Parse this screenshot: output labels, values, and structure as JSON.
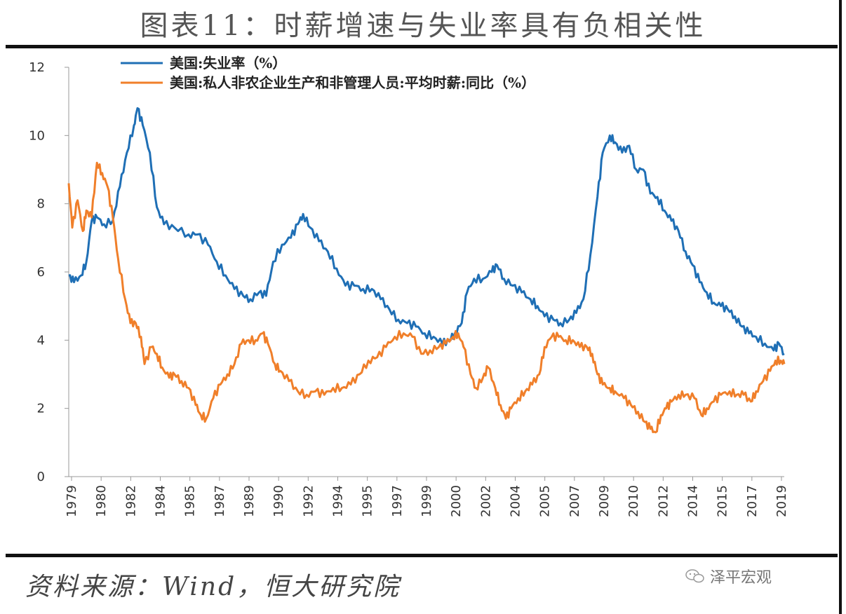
{
  "title": "图表11：时薪增速与失业率具有负相关性",
  "source": "资料来源：Wind，恒大研究院",
  "watermark": "泽平宏观",
  "watermark_icon": "wechat-icon",
  "colors": {
    "unemployment": "#1f6fb5",
    "wage": "#f07f2a",
    "axis": "#999999",
    "rule": "#111111"
  },
  "chart_data": {
    "type": "line",
    "title": "图表11：时薪增速与失业率具有负相关性",
    "xlabel": "",
    "ylabel": "",
    "xlim": [
      1979.0,
      2019.6
    ],
    "ylim": [
      0,
      12
    ],
    "yticks": [
      "0",
      "2",
      "4",
      "6",
      "8",
      "10",
      "12"
    ],
    "xticks": [
      "1979",
      "1980",
      "1982",
      "1984",
      "1985",
      "1987",
      "1989",
      "1990",
      "1992",
      "1994",
      "1995",
      "1997",
      "1999",
      "2000",
      "2002",
      "2004",
      "2005",
      "2007",
      "2009",
      "2010",
      "2012",
      "2014",
      "2015",
      "2017",
      "2019"
    ],
    "grid": false,
    "legend_position": "top",
    "series": [
      {
        "name": "美国:失业率（%）",
        "color": "#1f6fb5",
        "points": [
          [
            1979.0,
            5.9
          ],
          [
            1979.3,
            5.7
          ],
          [
            1979.7,
            5.9
          ],
          [
            1980.0,
            6.3
          ],
          [
            1980.3,
            7.5
          ],
          [
            1980.6,
            7.6
          ],
          [
            1981.0,
            7.4
          ],
          [
            1981.5,
            7.5
          ],
          [
            1981.9,
            8.5
          ],
          [
            1982.3,
            9.5
          ],
          [
            1982.7,
            10.3
          ],
          [
            1982.9,
            10.8
          ],
          [
            1983.2,
            10.3
          ],
          [
            1983.6,
            9.5
          ],
          [
            1984.0,
            7.9
          ],
          [
            1984.4,
            7.4
          ],
          [
            1985.0,
            7.3
          ],
          [
            1985.8,
            7.1
          ],
          [
            1986.3,
            7.1
          ],
          [
            1986.9,
            6.8
          ],
          [
            1987.4,
            6.3
          ],
          [
            1987.9,
            5.9
          ],
          [
            1988.4,
            5.5
          ],
          [
            1988.9,
            5.3
          ],
          [
            1989.3,
            5.2
          ],
          [
            1989.8,
            5.4
          ],
          [
            1990.2,
            5.3
          ],
          [
            1990.6,
            6.3
          ],
          [
            1991.1,
            6.8
          ],
          [
            1991.6,
            7.0
          ],
          [
            1992.0,
            7.4
          ],
          [
            1992.3,
            7.7
          ],
          [
            1992.7,
            7.3
          ],
          [
            1993.2,
            6.9
          ],
          [
            1993.7,
            6.6
          ],
          [
            1994.2,
            6.1
          ],
          [
            1994.7,
            5.6
          ],
          [
            1995.2,
            5.6
          ],
          [
            1995.7,
            5.5
          ],
          [
            1996.2,
            5.5
          ],
          [
            1996.7,
            5.2
          ],
          [
            1997.2,
            4.9
          ],
          [
            1997.7,
            4.6
          ],
          [
            1998.2,
            4.5
          ],
          [
            1998.7,
            4.4
          ],
          [
            1999.2,
            4.2
          ],
          [
            1999.7,
            4.1
          ],
          [
            2000.2,
            3.9
          ],
          [
            2000.6,
            4.0
          ],
          [
            2000.9,
            4.2
          ],
          [
            2001.3,
            4.5
          ],
          [
            2001.6,
            5.4
          ],
          [
            2002.0,
            5.8
          ],
          [
            2002.5,
            5.8
          ],
          [
            2003.0,
            6.0
          ],
          [
            2003.3,
            6.2
          ],
          [
            2003.7,
            5.8
          ],
          [
            2004.2,
            5.6
          ],
          [
            2004.7,
            5.4
          ],
          [
            2005.2,
            5.2
          ],
          [
            2005.6,
            5.0
          ],
          [
            2006.0,
            4.7
          ],
          [
            2006.5,
            4.6
          ],
          [
            2006.9,
            4.5
          ],
          [
            2007.4,
            4.6
          ],
          [
            2007.8,
            4.8
          ],
          [
            2008.2,
            5.2
          ],
          [
            2008.6,
            6.5
          ],
          [
            2009.0,
            8.2
          ],
          [
            2009.3,
            9.5
          ],
          [
            2009.7,
            10.0
          ],
          [
            2010.0,
            9.8
          ],
          [
            2010.4,
            9.5
          ],
          [
            2010.8,
            9.7
          ],
          [
            2011.2,
            9.0
          ],
          [
            2011.6,
            9.0
          ],
          [
            2012.0,
            8.3
          ],
          [
            2012.4,
            8.2
          ],
          [
            2012.8,
            7.8
          ],
          [
            2013.2,
            7.5
          ],
          [
            2013.6,
            7.2
          ],
          [
            2014.0,
            6.6
          ],
          [
            2014.4,
            6.2
          ],
          [
            2014.8,
            5.7
          ],
          [
            2015.2,
            5.4
          ],
          [
            2015.6,
            5.1
          ],
          [
            2016.0,
            5.0
          ],
          [
            2016.4,
            4.9
          ],
          [
            2016.8,
            4.7
          ],
          [
            2017.2,
            4.4
          ],
          [
            2017.6,
            4.2
          ],
          [
            2018.0,
            4.1
          ],
          [
            2018.5,
            3.9
          ],
          [
            2019.0,
            3.7
          ],
          [
            2019.3,
            3.9
          ],
          [
            2019.6,
            3.6
          ]
        ]
      },
      {
        "name": "美国:私人非农企业生产和非管理人员:平均时薪:同比（%）",
        "color": "#f07f2a",
        "points": [
          [
            1979.0,
            8.6
          ],
          [
            1979.2,
            7.3
          ],
          [
            1979.5,
            8.1
          ],
          [
            1979.8,
            7.2
          ],
          [
            1980.0,
            7.8
          ],
          [
            1980.3,
            7.6
          ],
          [
            1980.6,
            9.2
          ],
          [
            1980.9,
            8.9
          ],
          [
            1981.2,
            8.5
          ],
          [
            1981.5,
            7.6
          ],
          [
            1981.8,
            6.4
          ],
          [
            1982.2,
            5.2
          ],
          [
            1982.5,
            4.5
          ],
          [
            1982.8,
            4.5
          ],
          [
            1983.1,
            4.1
          ],
          [
            1983.3,
            3.3
          ],
          [
            1983.7,
            3.8
          ],
          [
            1984.0,
            3.6
          ],
          [
            1984.3,
            3.2
          ],
          [
            1984.7,
            2.9
          ],
          [
            1985.0,
            3.0
          ],
          [
            1985.4,
            2.8
          ],
          [
            1985.8,
            2.6
          ],
          [
            1986.2,
            2.1
          ],
          [
            1986.5,
            1.8
          ],
          [
            1986.8,
            1.7
          ],
          [
            1987.2,
            2.3
          ],
          [
            1987.6,
            2.7
          ],
          [
            1988.0,
            3.0
          ],
          [
            1988.4,
            3.3
          ],
          [
            1988.8,
            3.9
          ],
          [
            1989.2,
            4.0
          ],
          [
            1989.6,
            4.0
          ],
          [
            1990.0,
            4.2
          ],
          [
            1990.3,
            3.9
          ],
          [
            1990.7,
            3.3
          ],
          [
            1991.0,
            3.1
          ],
          [
            1991.5,
            2.8
          ],
          [
            1992.0,
            2.5
          ],
          [
            1992.5,
            2.4
          ],
          [
            1993.0,
            2.5
          ],
          [
            1993.5,
            2.4
          ],
          [
            1994.0,
            2.6
          ],
          [
            1994.5,
            2.6
          ],
          [
            1995.0,
            2.7
          ],
          [
            1995.5,
            3.0
          ],
          [
            1996.0,
            3.4
          ],
          [
            1996.5,
            3.5
          ],
          [
            1997.0,
            3.8
          ],
          [
            1997.5,
            4.1
          ],
          [
            1998.0,
            4.2
          ],
          [
            1998.5,
            4.1
          ],
          [
            1999.0,
            3.6
          ],
          [
            1999.5,
            3.7
          ],
          [
            2000.0,
            3.8
          ],
          [
            2000.4,
            3.9
          ],
          [
            2000.8,
            4.1
          ],
          [
            2001.1,
            4.2
          ],
          [
            2001.4,
            3.8
          ],
          [
            2001.8,
            3.0
          ],
          [
            2002.1,
            2.6
          ],
          [
            2002.5,
            2.9
          ],
          [
            2002.8,
            3.2
          ],
          [
            2003.2,
            2.6
          ],
          [
            2003.5,
            2.1
          ],
          [
            2003.8,
            1.7
          ],
          [
            2004.1,
            2.0
          ],
          [
            2004.5,
            2.3
          ],
          [
            2004.9,
            2.5
          ],
          [
            2005.3,
            2.7
          ],
          [
            2005.7,
            3.0
          ],
          [
            2006.0,
            3.8
          ],
          [
            2006.4,
            4.1
          ],
          [
            2006.8,
            4.1
          ],
          [
            2007.2,
            4.0
          ],
          [
            2007.6,
            4.0
          ],
          [
            2008.0,
            3.8
          ],
          [
            2008.4,
            3.8
          ],
          [
            2008.7,
            3.6
          ],
          [
            2009.0,
            3.0
          ],
          [
            2009.3,
            2.7
          ],
          [
            2009.7,
            2.6
          ],
          [
            2010.0,
            2.5
          ],
          [
            2010.5,
            2.3
          ],
          [
            2010.9,
            2.1
          ],
          [
            2011.3,
            1.9
          ],
          [
            2011.7,
            1.6
          ],
          [
            2012.0,
            1.4
          ],
          [
            2012.3,
            1.3
          ],
          [
            2012.6,
            1.8
          ],
          [
            2012.9,
            2.0
          ],
          [
            2013.2,
            2.2
          ],
          [
            2013.6,
            2.4
          ],
          [
            2014.0,
            2.4
          ],
          [
            2014.5,
            2.3
          ],
          [
            2014.9,
            1.8
          ],
          [
            2015.2,
            2.0
          ],
          [
            2015.6,
            2.2
          ],
          [
            2016.0,
            2.4
          ],
          [
            2016.5,
            2.5
          ],
          [
            2016.9,
            2.4
          ],
          [
            2017.3,
            2.4
          ],
          [
            2017.7,
            2.2
          ],
          [
            2018.0,
            2.5
          ],
          [
            2018.4,
            2.8
          ],
          [
            2018.8,
            3.1
          ],
          [
            2019.1,
            3.4
          ],
          [
            2019.4,
            3.4
          ],
          [
            2019.6,
            3.3
          ]
        ]
      }
    ]
  }
}
